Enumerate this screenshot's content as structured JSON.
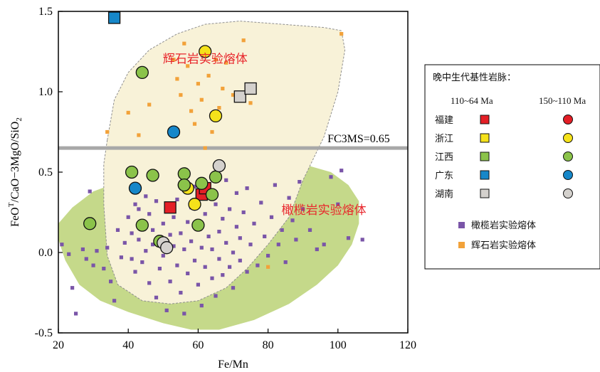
{
  "chart_data": {
    "type": "scatter",
    "title": "",
    "xlabel": "Fe/Mn",
    "ylabel": "FeO^T/CaO−3MgO/SiO₂",
    "ylabel_parts": {
      "a": "FeO",
      "sup": "T",
      "b": "/CaO−3MgO/SiO",
      "sub": "2"
    },
    "xlim": [
      20,
      120
    ],
    "ylim": [
      -0.5,
      1.5
    ],
    "xticks": [
      "20",
      "40",
      "60",
      "80",
      "100",
      "120"
    ],
    "yticks": [
      "-0.5",
      "0.0",
      "0.5",
      "1.0",
      "1.5"
    ],
    "threshold": {
      "label": "FC3MS=0.65",
      "value": 0.65,
      "color": "#a8a8a8"
    },
    "regions": [
      {
        "name": "橄榄岩实验熔体",
        "color": "#c5d98a",
        "label_at": [
          96,
          0.24
        ],
        "outline": [
          [
            20,
            0.08
          ],
          [
            22,
            -0.05
          ],
          [
            26,
            -0.2
          ],
          [
            32,
            -0.3
          ],
          [
            40,
            -0.37
          ],
          [
            50,
            -0.44
          ],
          [
            58,
            -0.48
          ],
          [
            66,
            -0.48
          ],
          [
            76,
            -0.42
          ],
          [
            86,
            -0.32
          ],
          [
            94,
            -0.2
          ],
          [
            100,
            -0.08
          ],
          [
            104,
            0.05
          ],
          [
            106,
            0.18
          ],
          [
            106,
            0.32
          ],
          [
            103,
            0.42
          ],
          [
            98,
            0.5
          ],
          [
            90,
            0.55
          ],
          [
            80,
            0.57
          ],
          [
            70,
            0.56
          ],
          [
            60,
            0.53
          ],
          [
            50,
            0.51
          ],
          [
            40,
            0.46
          ],
          [
            30,
            0.38
          ],
          [
            24,
            0.28
          ],
          [
            20,
            0.18
          ]
        ]
      },
      {
        "name": "辉石岩实验熔体",
        "color": "#f8f2d8",
        "label_at": [
          62,
          1.18
        ],
        "outline": [
          [
            34,
            0.7
          ],
          [
            36,
            0.95
          ],
          [
            40,
            1.12
          ],
          [
            46,
            1.26
          ],
          [
            54,
            1.36
          ],
          [
            62,
            1.42
          ],
          [
            72,
            1.44
          ],
          [
            84,
            1.42
          ],
          [
            96,
            1.4
          ],
          [
            101,
            1.38
          ],
          [
            102,
            1.26
          ],
          [
            100,
            1.0
          ],
          [
            96,
            0.72
          ],
          [
            90,
            0.45
          ],
          [
            86,
            0.22
          ],
          [
            80,
            0.05
          ],
          [
            74,
            -0.1
          ],
          [
            68,
            -0.22
          ],
          [
            60,
            -0.3
          ],
          [
            52,
            -0.32
          ],
          [
            44,
            -0.3
          ],
          [
            37,
            -0.2
          ],
          [
            34,
            -0.02
          ],
          [
            33,
            0.3
          ],
          [
            33,
            0.55
          ]
        ]
      }
    ],
    "small_points": {
      "olivine": {
        "name": "橄榄岩实验熔体",
        "color": "#7a55a8",
        "points": [
          [
            21,
            0.05
          ],
          [
            23,
            -0.01
          ],
          [
            24,
            -0.22
          ],
          [
            25,
            -0.38
          ],
          [
            27,
            0.02
          ],
          [
            28,
            -0.04
          ],
          [
            29,
            0.38
          ],
          [
            30,
            -0.08
          ],
          [
            31,
            0.01
          ],
          [
            33,
            -0.1
          ],
          [
            34,
            0.03
          ],
          [
            35,
            -0.18
          ],
          [
            36,
            -0.3
          ],
          [
            37,
            0.14
          ],
          [
            38,
            -0.03
          ],
          [
            39,
            0.06
          ],
          [
            40,
            0.22
          ],
          [
            41,
            -0.04
          ],
          [
            41,
            0.12
          ],
          [
            42,
            0.3
          ],
          [
            42,
            -0.12
          ],
          [
            43,
            0.08
          ],
          [
            43,
            0.27
          ],
          [
            44,
            -0.06
          ],
          [
            44,
            0.19
          ],
          [
            45,
            0.35
          ],
          [
            45,
            0.01
          ],
          [
            46,
            -0.19
          ],
          [
            46,
            0.24
          ],
          [
            47,
            0.05
          ],
          [
            47,
            0.14
          ],
          [
            48,
            -0.28
          ],
          [
            48,
            0.32
          ],
          [
            49,
            0.09
          ],
          [
            49,
            -0.1
          ],
          [
            50,
            0.18
          ],
          [
            50,
            -0.02
          ],
          [
            51,
            0.27
          ],
          [
            51,
            -0.36
          ],
          [
            52,
            0.11
          ],
          [
            52,
            -0.18
          ],
          [
            53,
            0.04
          ],
          [
            53,
            0.22
          ],
          [
            54,
            -0.08
          ],
          [
            54,
            0.33
          ],
          [
            55,
            -0.25
          ],
          [
            55,
            0.12
          ],
          [
            56,
            0.02
          ],
          [
            56,
            -0.38
          ],
          [
            57,
            0.19
          ],
          [
            57,
            -0.13
          ],
          [
            58,
            0.07
          ],
          [
            58,
            0.28
          ],
          [
            59,
            -0.05
          ],
          [
            59,
            0.41
          ],
          [
            60,
            -0.2
          ],
          [
            60,
            0.15
          ],
          [
            61,
            0.03
          ],
          [
            61,
            -0.33
          ],
          [
            62,
            0.24
          ],
          [
            62,
            -0.09
          ],
          [
            63,
            0.1
          ],
          [
            63,
            0.36
          ],
          [
            64,
            -0.16
          ],
          [
            64,
            0.02
          ],
          [
            65,
            0.3
          ],
          [
            65,
            -0.27
          ],
          [
            66,
            0.13
          ],
          [
            66,
            -0.04
          ],
          [
            67,
            0.21
          ],
          [
            67,
            -0.14
          ],
          [
            68,
            0.06
          ],
          [
            68,
            0.45
          ],
          [
            69,
            -0.09
          ],
          [
            69,
            0.27
          ],
          [
            70,
            0.0
          ],
          [
            70,
            -0.22
          ],
          [
            71,
            0.16
          ],
          [
            71,
            0.37
          ],
          [
            72,
            -0.05
          ],
          [
            72,
            0.09
          ],
          [
            73,
            0.25
          ],
          [
            74,
            -0.12
          ],
          [
            74,
            0.4
          ],
          [
            75,
            0.05
          ],
          [
            76,
            0.18
          ],
          [
            77,
            -0.08
          ],
          [
            78,
            0.31
          ],
          [
            79,
            0.1
          ],
          [
            80,
            -0.02
          ],
          [
            81,
            0.22
          ],
          [
            82,
            0.42
          ],
          [
            83,
            0.05
          ],
          [
            84,
            0.14
          ],
          [
            85,
            -0.06
          ],
          [
            86,
            0.34
          ],
          [
            87,
            0.2
          ],
          [
            88,
            0.08
          ],
          [
            89,
            0.44
          ],
          [
            90,
            0.27
          ],
          [
            92,
            0.14
          ],
          [
            94,
            0.02
          ],
          [
            96,
            0.05
          ],
          [
            98,
            0.47
          ],
          [
            100,
            0.3
          ],
          [
            101,
            0.51
          ],
          [
            103,
            0.09
          ],
          [
            107,
            0.08
          ]
        ]
      },
      "pyroxenite": {
        "name": "辉石岩实验熔体",
        "color": "#f2a23a",
        "points": [
          [
            34,
            0.75
          ],
          [
            40,
            0.87
          ],
          [
            43,
            0.73
          ],
          [
            46,
            0.92
          ],
          [
            53,
            1.2
          ],
          [
            54,
            1.08
          ],
          [
            55,
            0.98
          ],
          [
            56,
            1.3
          ],
          [
            57,
            1.16
          ],
          [
            58,
            0.88
          ],
          [
            59,
            0.8
          ],
          [
            60,
            1.05
          ],
          [
            61,
            0.95
          ],
          [
            62,
            0.65
          ],
          [
            63,
            1.1
          ],
          [
            64,
            0.75
          ],
          [
            65,
            1.2
          ],
          [
            66,
            0.9
          ],
          [
            67,
            1.02
          ],
          [
            68,
            1.18
          ],
          [
            70,
            0.98
          ],
          [
            73,
            1.32
          ],
          [
            75,
            0.93
          ],
          [
            80,
            -0.09
          ],
          [
            101,
            1.36
          ]
        ]
      }
    },
    "legend": {
      "title": "晚中生代基性岩脉：",
      "col_headers": [
        "110~64 Ma",
        "150~110 Ma"
      ],
      "rows": [
        {
          "name": "福建",
          "color": "#e41f26"
        },
        {
          "name": "浙江",
          "color": "#f5e21b"
        },
        {
          "name": "江西",
          "color": "#8bc34a"
        },
        {
          "name": "广东",
          "color": "#1687c9"
        },
        {
          "name": "湖南",
          "color": "#d4d1cd"
        }
      ],
      "extras": [
        {
          "name": "橄榄岩实验熔体",
          "color": "#7a55a8"
        },
        {
          "name": "辉石岩实验熔体",
          "color": "#f2a23a"
        }
      ]
    },
    "series": [
      {
        "region": "福建",
        "age": "110~64 Ma",
        "marker": "square",
        "color": "#e41f26",
        "points": [
          [
            52,
            0.28
          ],
          [
            61,
            0.36
          ],
          [
            62,
            0.4
          ]
        ]
      },
      {
        "region": "浙江",
        "age": "150~110 Ma",
        "marker": "circle",
        "color": "#f5e21b",
        "points": [
          [
            62,
            1.25
          ],
          [
            65,
            0.85
          ],
          [
            56,
            0.42
          ],
          [
            59,
            0.3
          ],
          [
            57,
            0.4
          ]
        ]
      },
      {
        "region": "江西",
        "age": "150~110 Ma",
        "marker": "circle",
        "color": "#8bc34a",
        "points": [
          [
            29,
            0.18
          ],
          [
            44,
            1.12
          ],
          [
            41,
            0.5
          ],
          [
            44,
            0.17
          ],
          [
            47,
            0.48
          ],
          [
            56,
            0.49
          ],
          [
            56,
            0.42
          ],
          [
            61,
            0.43
          ],
          [
            64,
            0.36
          ],
          [
            65,
            0.47
          ],
          [
            60,
            0.17
          ],
          [
            49,
            0.07
          ]
        ]
      },
      {
        "region": "广东",
        "age": "110~64 Ma",
        "marker": "square",
        "color": "#1687c9",
        "points": [
          [
            36,
            1.46
          ]
        ]
      },
      {
        "region": "广东",
        "age": "150~110 Ma",
        "marker": "circle",
        "color": "#1687c9",
        "points": [
          [
            53,
            0.75
          ],
          [
            42,
            0.4
          ]
        ]
      },
      {
        "region": "湖南",
        "age": "110~64 Ma",
        "marker": "square",
        "color": "#d4d1cd",
        "points": [
          [
            72,
            0.97
          ],
          [
            75,
            1.02
          ]
        ]
      },
      {
        "region": "湖南",
        "age": "150~110 Ma",
        "marker": "circle",
        "color": "#d4d1cd",
        "points": [
          [
            66,
            0.54
          ],
          [
            50,
            0.06
          ],
          [
            51,
            0.03
          ]
        ]
      }
    ]
  }
}
